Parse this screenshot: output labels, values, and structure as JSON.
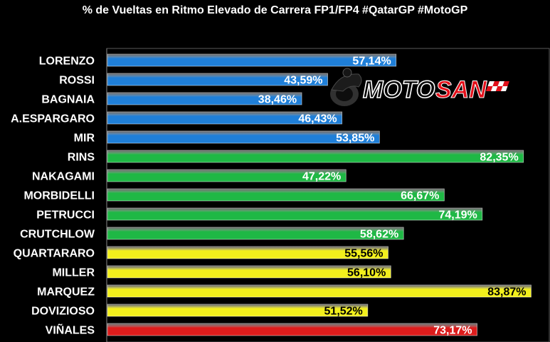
{
  "chart_data": {
    "type": "bar",
    "orientation": "horizontal",
    "title": "% de Vueltas en Ritmo Elevado de Carrera FP1/FP4 #QatarGP #MotoGP",
    "categories": [
      "LORENZO",
      "ROSSI",
      "BAGNAIA",
      "A.ESPARGARO",
      "MIR",
      "RINS",
      "NAKAGAMI",
      "MORBIDELLI",
      "PETRUCCI",
      "CRUTCHLOW",
      "QUARTARARO",
      "MILLER",
      "MARQUEZ",
      "DOVIZIOSO",
      "VIÑALES"
    ],
    "values": [
      57.14,
      43.59,
      38.46,
      46.43,
      53.85,
      82.35,
      47.22,
      66.67,
      74.19,
      58.62,
      55.56,
      56.1,
      83.87,
      51.52,
      73.17
    ],
    "value_labels": [
      "57,14%",
      "43,59%",
      "38,46%",
      "46,43%",
      "53,85%",
      "82,35%",
      "47,22%",
      "66,67%",
      "74,19%",
      "58,62%",
      "55,56%",
      "56,10%",
      "83,87%",
      "51,52%",
      "73,17%"
    ],
    "bar_colors": [
      "#1f7fd8",
      "#1f7fd8",
      "#1f7fd8",
      "#1f7fd8",
      "#1f7fd8",
      "#1fb845",
      "#1fb845",
      "#1fb845",
      "#1fb845",
      "#1fb845",
      "#f2ef1c",
      "#f2ef1c",
      "#f2ef1c",
      "#f2ef1c",
      "#dc1c1c"
    ],
    "label_colors": [
      "#ffffff",
      "#ffffff",
      "#ffffff",
      "#ffffff",
      "#ffffff",
      "#ffffff",
      "#ffffff",
      "#ffffff",
      "#ffffff",
      "#ffffff",
      "#000000",
      "#000000",
      "#000000",
      "#000000",
      "#ffffff"
    ],
    "xlim": [
      0,
      100
    ],
    "grid": false,
    "legend": "none"
  },
  "logo": {
    "text_moto": "MOTO",
    "text_san": "SAN",
    "icon": "motorcycle-rider-icon"
  },
  "colors": {
    "background": "#000000",
    "grid": "#5a5a5a"
  }
}
